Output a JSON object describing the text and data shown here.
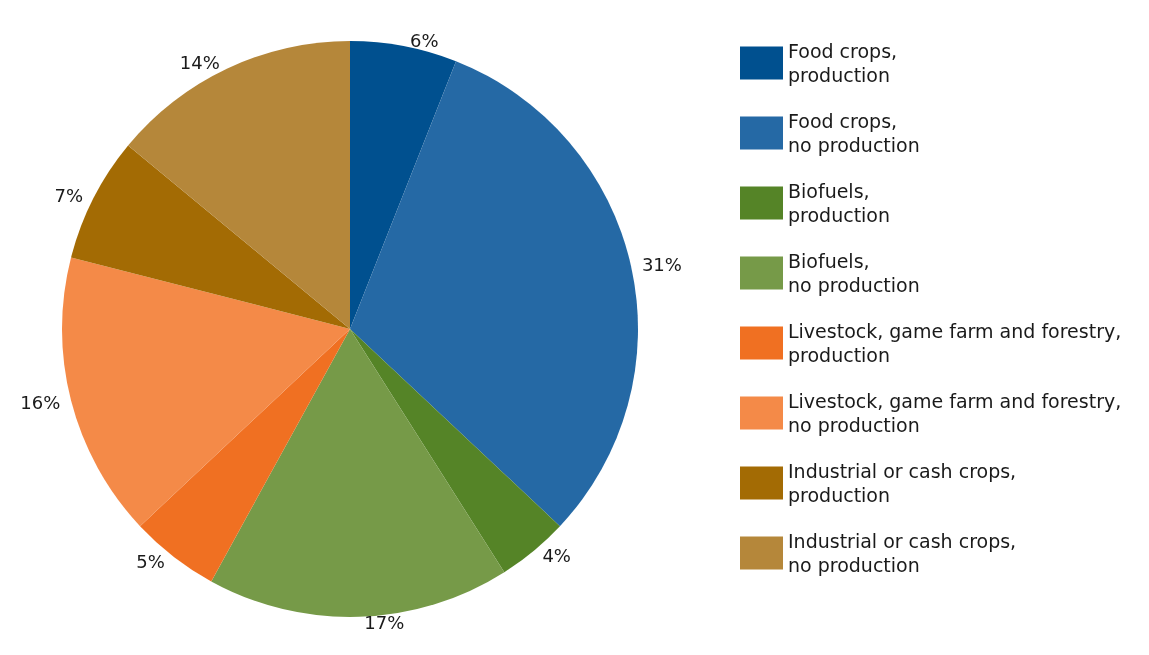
{
  "chart_data": {
    "type": "pie",
    "categories": [
      "Food crops, production",
      "Food crops, no production",
      "Biofuels, production",
      "Biofuels, no production",
      "Livestock, game farm and forestry, production",
      "Livestock, game farm and forestry, no production",
      "Industrial or cash crops, production",
      "Industrial or cash crops, no production"
    ],
    "values": [
      6,
      31,
      4,
      17,
      5,
      16,
      7,
      14
    ],
    "value_labels": [
      "6%",
      "31%",
      "4%",
      "17%",
      "5%",
      "16%",
      "7%",
      "14%"
    ],
    "colors": [
      "#00508f",
      "#2569a5",
      "#558427",
      "#769a48",
      "#f07022",
      "#f48a48",
      "#a36b04",
      "#b5873a"
    ],
    "legend": "right"
  }
}
